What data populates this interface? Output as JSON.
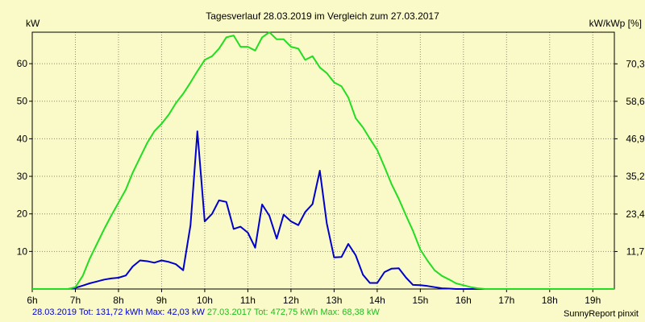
{
  "chart_data": {
    "type": "line",
    "title": "Tagesverlauf 28.03.2019 im Vergleich zum 27.03.2017",
    "ylabel_left": "kW",
    "ylabel_right": "kW/kWp [%]",
    "x_ticks": [
      "6h",
      "7h",
      "8h",
      "9h",
      "10h",
      "11h",
      "12h",
      "13h",
      "14h",
      "15h",
      "16h",
      "17h",
      "18h",
      "19h"
    ],
    "xlim": [
      6,
      19.5
    ],
    "ylim": [
      0,
      68.38
    ],
    "y_ticks_left": [
      10,
      20,
      30,
      40,
      50,
      60
    ],
    "y_ticks_right": [
      "11,7",
      "23,4",
      "35,2",
      "46,9",
      "58,6",
      "70,3"
    ],
    "y_ticks_right_values": [
      11.7,
      23.4,
      35.2,
      46.9,
      58.6,
      70.3
    ],
    "right_axis_scale": 1.1725,
    "grid": true,
    "series": [
      {
        "name": "28.03.2019",
        "color": "#0000cc",
        "x": [
          6.0,
          6.5,
          6.83,
          7.0,
          7.17,
          7.33,
          7.5,
          7.67,
          7.83,
          8.0,
          8.17,
          8.33,
          8.5,
          8.67,
          8.83,
          9.0,
          9.17,
          9.33,
          9.5,
          9.67,
          9.83,
          10.0,
          10.17,
          10.33,
          10.5,
          10.67,
          10.83,
          11.0,
          11.17,
          11.33,
          11.5,
          11.67,
          11.83,
          12.0,
          12.17,
          12.33,
          12.5,
          12.67,
          12.83,
          13.0,
          13.17,
          13.33,
          13.5,
          13.67,
          13.83,
          14.0,
          14.17,
          14.33,
          14.5,
          14.67,
          14.83,
          15.0,
          15.17,
          15.33,
          15.5,
          15.67,
          15.83,
          16.0,
          16.17,
          16.33,
          16.5,
          16.67,
          16.83,
          17.0,
          17.17,
          17.33,
          17.5,
          17.67,
          17.83,
          18.0,
          18.17,
          18.33,
          18.5,
          18.67,
          18.83,
          19.0,
          19.17,
          19.33,
          19.5
        ],
        "y": [
          0,
          0,
          0,
          0.3,
          0.9,
          1.5,
          2,
          2.5,
          2.8,
          3,
          3.6,
          6,
          7.6,
          7.4,
          7,
          7.6,
          7.2,
          6.6,
          5,
          17,
          42,
          18,
          20,
          23.6,
          23.2,
          16,
          16.6,
          15,
          11,
          22.5,
          19.5,
          13.4,
          19.8,
          18,
          17,
          20.5,
          22.6,
          31.5,
          17.5,
          8.4,
          8.5,
          12,
          9,
          3.8,
          1.6,
          1.6,
          4.5,
          5.4,
          5.5,
          3,
          1.1,
          1,
          0.8,
          0.5,
          0.2,
          0.1,
          0,
          0,
          0,
          0,
          0,
          0,
          0,
          0,
          0,
          0,
          0,
          0,
          0,
          0,
          0,
          0,
          0,
          0,
          0,
          0,
          0,
          0,
          0
        ]
      },
      {
        "name": "27.03.2017",
        "color": "#22dd22",
        "x": [
          6.0,
          6.33,
          6.5,
          6.67,
          6.83,
          7.0,
          7.17,
          7.33,
          7.5,
          7.67,
          7.83,
          8.0,
          8.17,
          8.33,
          8.5,
          8.67,
          8.83,
          9.0,
          9.17,
          9.33,
          9.5,
          9.67,
          9.83,
          10.0,
          10.17,
          10.33,
          10.5,
          10.67,
          10.83,
          11.0,
          11.17,
          11.33,
          11.5,
          11.67,
          11.83,
          12.0,
          12.17,
          12.33,
          12.5,
          12.67,
          12.83,
          13.0,
          13.17,
          13.33,
          13.5,
          13.67,
          13.83,
          14.0,
          14.17,
          14.33,
          14.5,
          14.67,
          14.83,
          15.0,
          15.17,
          15.33,
          15.5,
          15.67,
          15.83,
          16.0,
          16.17,
          16.33,
          16.5,
          16.67,
          16.83,
          17.0,
          17.17,
          17.33,
          17.5,
          17.67,
          17.83,
          18.0,
          18.17,
          18.33,
          18.5,
          18.67,
          18.83,
          19.0,
          19.17,
          19.33,
          19.5
        ],
        "y": [
          0,
          0,
          0,
          0,
          0,
          0.5,
          3.5,
          8,
          12,
          16,
          19.5,
          23,
          26.5,
          31,
          35,
          39,
          42,
          44,
          46.5,
          49.5,
          52,
          55,
          58,
          61,
          62,
          64,
          67,
          67.5,
          64.5,
          64.5,
          63.5,
          67,
          68.38,
          66.5,
          66.5,
          64.5,
          64,
          61,
          62,
          59,
          57.5,
          55,
          54,
          51,
          45.5,
          43,
          40,
          37,
          32.5,
          28,
          24,
          19.5,
          15.5,
          10.5,
          7.5,
          5,
          3.5,
          2.5,
          1.5,
          1,
          0.5,
          0.2,
          0,
          0,
          0,
          0,
          0,
          0,
          0,
          0,
          0,
          0,
          0,
          0,
          0,
          0,
          0,
          0,
          0,
          0,
          0
        ]
      }
    ]
  },
  "legend": {
    "s1_date": "28.03.2019",
    "s1_stats": "Tot: 131,72 kWh Max: 42,03 kW",
    "s2_date": "27.03.2017",
    "s2_stats": "Tot: 472,75 kWh Max: 68,38 kW"
  },
  "credit": "SunnyReport pinxit"
}
